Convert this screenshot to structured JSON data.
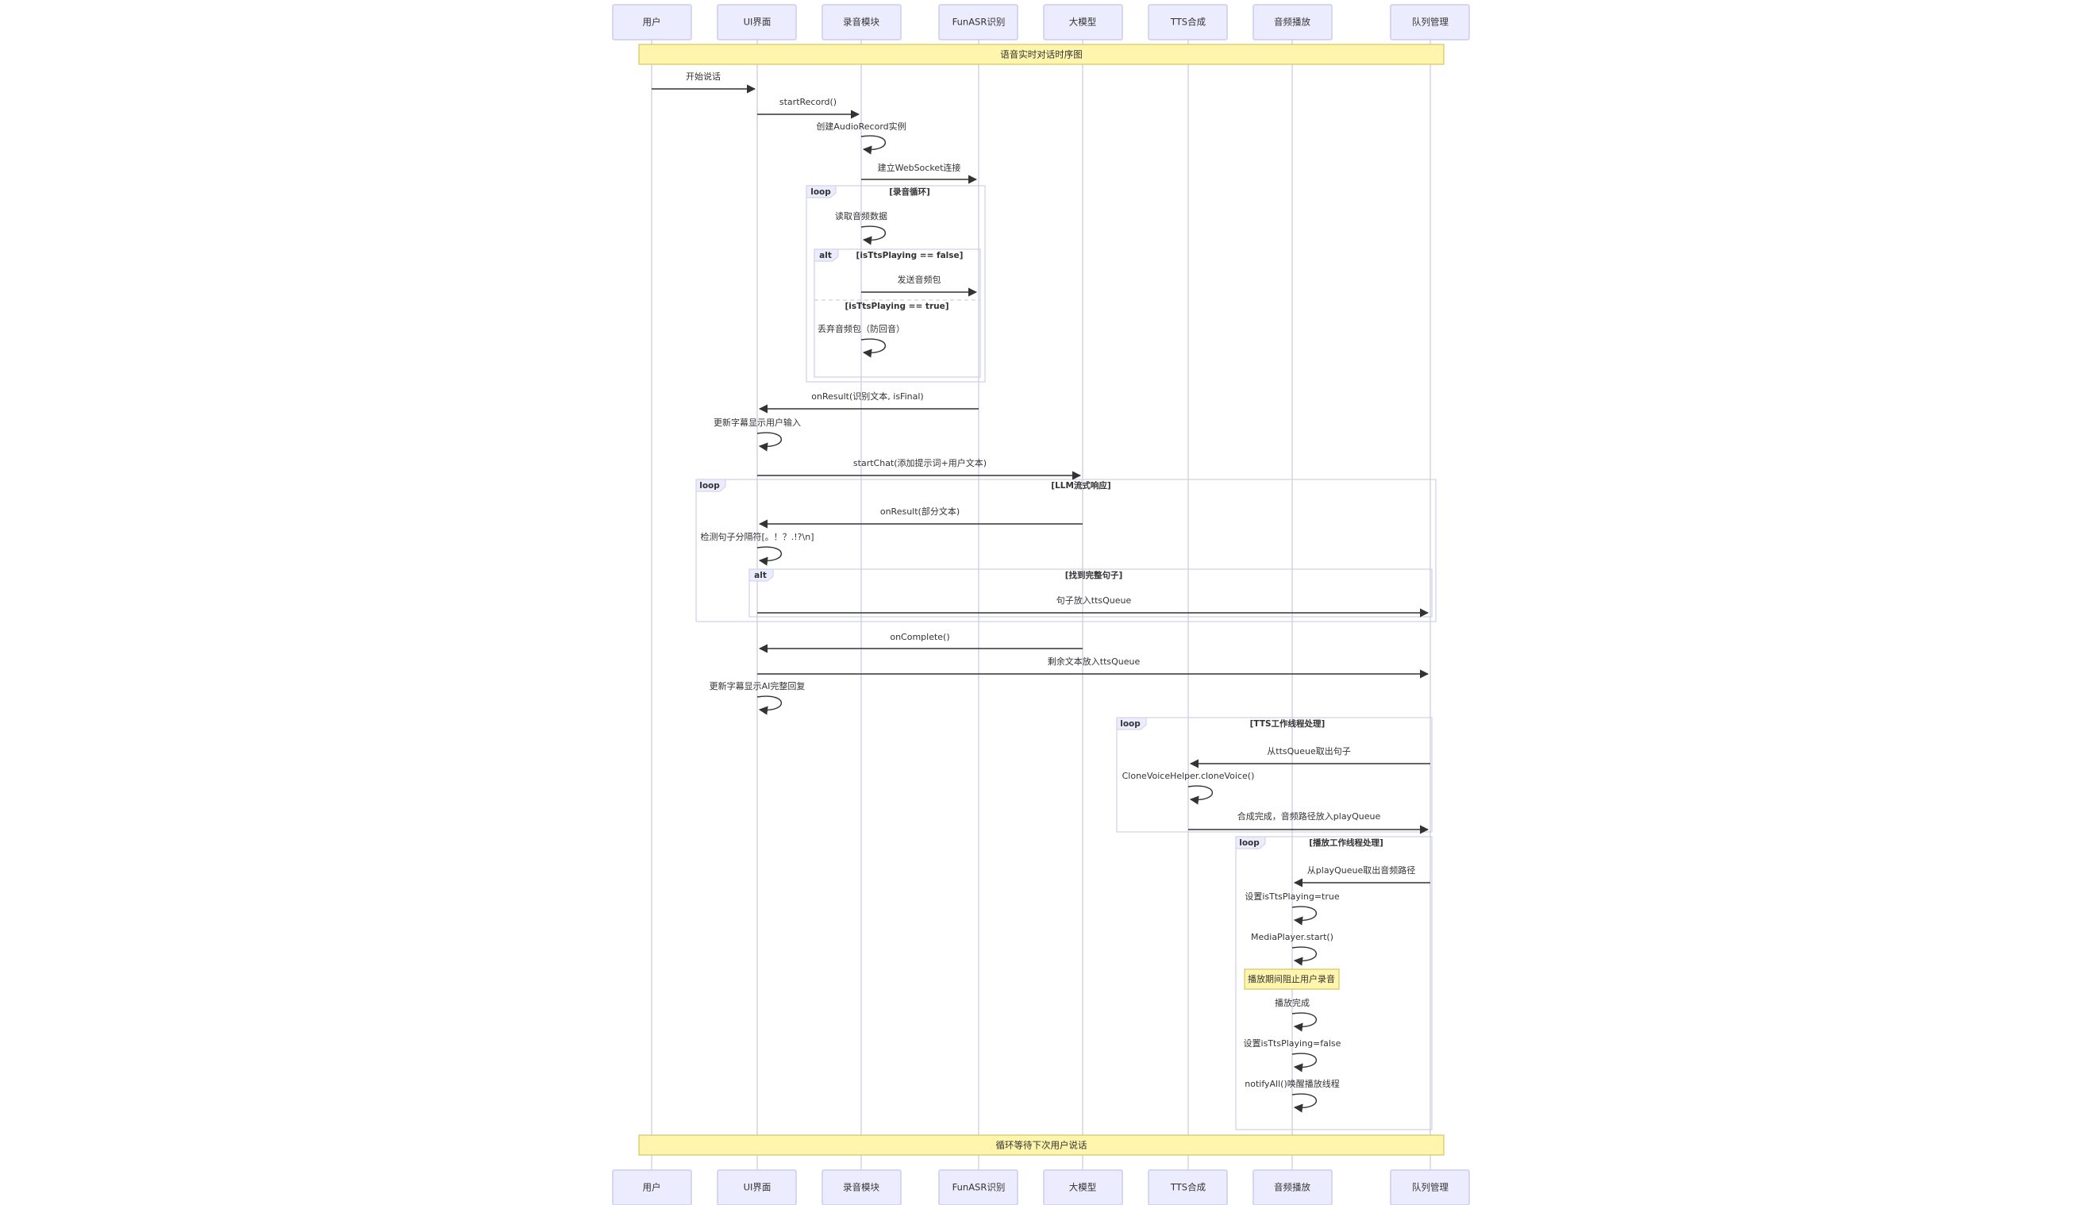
{
  "participants": [
    {
      "id": "user",
      "label": "用户"
    },
    {
      "id": "ui",
      "label": "UI界面"
    },
    {
      "id": "rec",
      "label": "录音模块"
    },
    {
      "id": "asr",
      "label": "FunASR识别"
    },
    {
      "id": "llm",
      "label": "大模型"
    },
    {
      "id": "tts",
      "label": "TTS合成"
    },
    {
      "id": "player",
      "label": "音频播放"
    },
    {
      "id": "queue",
      "label": "队列管理"
    }
  ],
  "notes": [
    {
      "text": "语音实时对话时序图"
    },
    {
      "text": "播放期间阻止用户录音"
    },
    {
      "text": "循环等待下次用户说话"
    }
  ],
  "frames": [
    {
      "kind": "loop",
      "condition": "[录音循环]"
    },
    {
      "kind": "alt",
      "condition": "[isTtsPlaying == false]",
      "else_condition": "[isTtsPlaying == true]"
    },
    {
      "kind": "loop",
      "condition": "[LLM流式响应]"
    },
    {
      "kind": "alt",
      "condition": "[找到完整句子]"
    },
    {
      "kind": "loop",
      "condition": "[TTS工作线程处理]"
    },
    {
      "kind": "loop",
      "condition": "[播放工作线程处理]"
    }
  ],
  "messages": [
    {
      "from": "user",
      "to": "ui",
      "text": "开始说话"
    },
    {
      "from": "ui",
      "to": "rec",
      "text": "startRecord()"
    },
    {
      "from": "rec",
      "to": "rec",
      "text": "创建AudioRecord实例"
    },
    {
      "from": "rec",
      "to": "asr",
      "text": "建立WebSocket连接"
    },
    {
      "from": "rec",
      "to": "rec",
      "text": "读取音频数据"
    },
    {
      "from": "rec",
      "to": "asr",
      "text": "发送音频包"
    },
    {
      "from": "rec",
      "to": "rec",
      "text": "丢弃音频包（防回音）"
    },
    {
      "from": "asr",
      "to": "ui",
      "text": "onResult(识别文本, isFinal)"
    },
    {
      "from": "ui",
      "to": "ui",
      "text": "更新字幕显示用户输入"
    },
    {
      "from": "ui",
      "to": "llm",
      "text": "startChat(添加提示词+用户文本)"
    },
    {
      "from": "llm",
      "to": "ui",
      "text": "onResult(部分文本)"
    },
    {
      "from": "ui",
      "to": "ui",
      "text": "检测句子分隔符[。！？.!?\\n]"
    },
    {
      "from": "ui",
      "to": "queue",
      "text": "句子放入ttsQueue"
    },
    {
      "from": "llm",
      "to": "ui",
      "text": "onComplete()"
    },
    {
      "from": "ui",
      "to": "queue",
      "text": "剩余文本放入ttsQueue"
    },
    {
      "from": "ui",
      "to": "ui",
      "text": "更新字幕显示AI完整回复"
    },
    {
      "from": "queue",
      "to": "tts",
      "text": "从ttsQueue取出句子"
    },
    {
      "from": "tts",
      "to": "tts",
      "text": "CloneVoiceHelper.cloneVoice()"
    },
    {
      "from": "tts",
      "to": "queue",
      "text": "合成完成，音频路径放入playQueue"
    },
    {
      "from": "queue",
      "to": "player",
      "text": "从playQueue取出音频路径"
    },
    {
      "from": "player",
      "to": "player",
      "text": "设置isTtsPlaying=true"
    },
    {
      "from": "player",
      "to": "player",
      "text": "MediaPlayer.start()"
    },
    {
      "from": "player",
      "to": "player",
      "text": "播放完成"
    },
    {
      "from": "player",
      "to": "player",
      "text": "设置isTtsPlaying=false"
    },
    {
      "from": "player",
      "to": "player",
      "text": "notifyAll()唤醒播放线程"
    }
  ]
}
